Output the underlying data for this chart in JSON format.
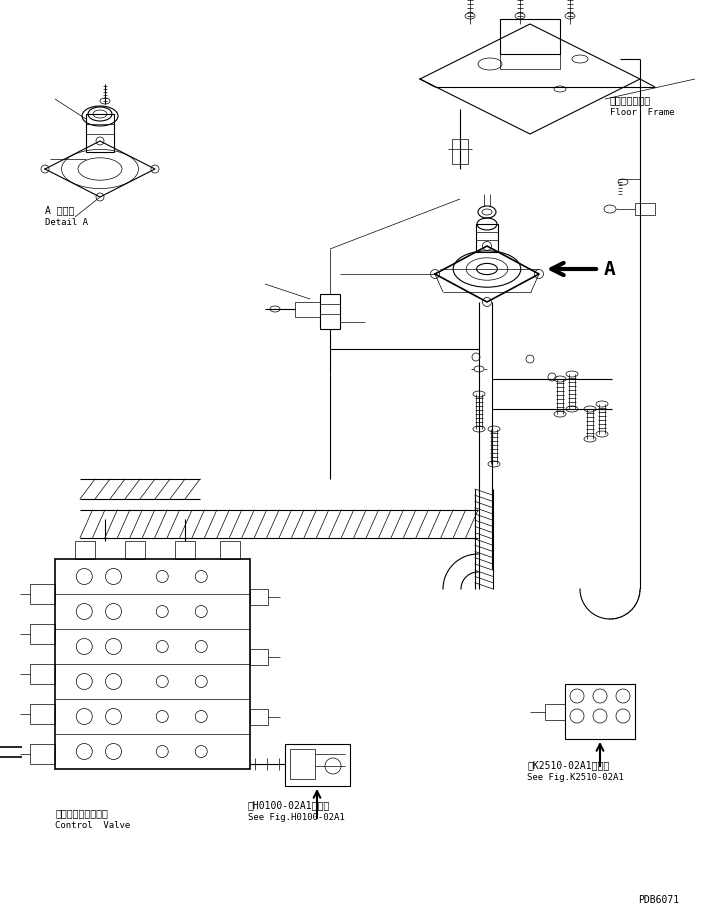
{
  "bg_color": "#ffffff",
  "line_color": "#000000",
  "fig_width": 7.17,
  "fig_height": 9.12,
  "dpi": 100,
  "labels": {
    "detail_a_jp": "A 　詳細",
    "detail_a_en": "Detail A",
    "floor_frame_jp": "フロアフレーム",
    "floor_frame_en": "Floor  Frame",
    "control_valve_jp": "コントロールバルブ",
    "control_valve_en": "Control  Valve",
    "see_fig_h_jp": "第H0100-02A1図参照",
    "see_fig_h_en": "See Fig.H0100-02A1",
    "see_fig_k_jp": "第K2510-02A1図参照",
    "see_fig_k_en": "See Fig.K2510-02A1",
    "arrow_label": "A",
    "part_number": "PDB6071"
  },
  "font_sizes": {
    "label_jp": 7,
    "label_en": 6.5,
    "arrow_label": 14,
    "part_number": 7
  }
}
